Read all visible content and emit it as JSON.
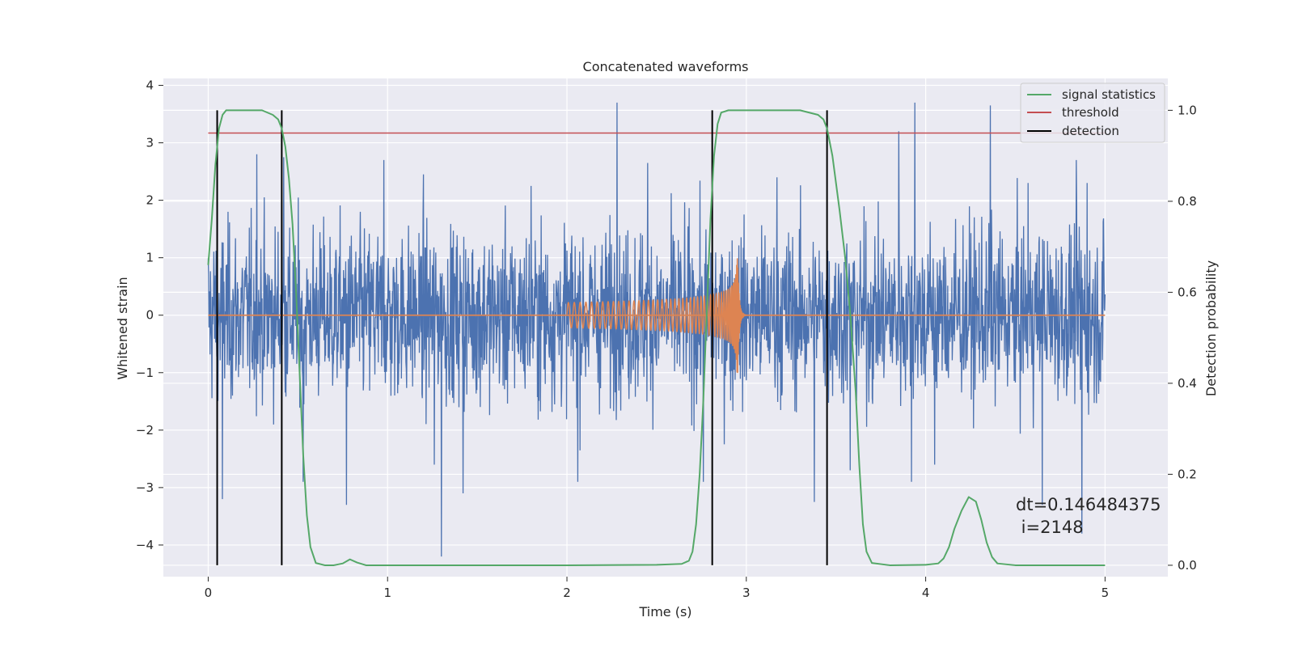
{
  "chart_data": {
    "type": "line",
    "title": "Concatenated waveforms",
    "xlabel": "Time (s)",
    "ylabel": "Whitened strain",
    "y2label": "Detection probability",
    "xlim": [
      -0.25,
      5.35
    ],
    "ylim": [
      -4.55,
      4.12
    ],
    "y2lim": [
      -0.025,
      1.07
    ],
    "xticks": [
      0,
      1,
      2,
      3,
      4,
      5
    ],
    "yticks": [
      -4,
      -3,
      -2,
      -1,
      0,
      1,
      2,
      3,
      4
    ],
    "y2ticks": [
      0.0,
      0.2,
      0.4,
      0.6,
      0.8,
      1.0
    ],
    "y2ticklabels": [
      "0.0",
      "0.2",
      "0.4",
      "0.6",
      "0.8",
      "1.0"
    ],
    "ytick_labels": [
      "−4",
      "−3",
      "−2",
      "−1",
      "0",
      "1",
      "2",
      "3",
      "4"
    ],
    "grid": true,
    "legend_position": "upper right",
    "colors": {
      "background": "#EAEAF2",
      "grid": "#FFFFFF",
      "strain": "#4C72B0",
      "template": "#DD8452",
      "signal_statistics": "#55A868",
      "threshold": "#C44E52",
      "detection": "#000000"
    },
    "series": [
      {
        "name": "strain",
        "axis": "left",
        "noise_amplitude_typical": 1.0,
        "x_range": [
          0,
          5.0
        ],
        "peaks": [
          {
            "x": 0.05,
            "y": 1.8
          },
          {
            "x": 0.08,
            "y": -3.2
          },
          {
            "x": 0.27,
            "y": 2.7
          },
          {
            "x": 0.27,
            "y": -2.7
          },
          {
            "x": 0.27,
            "y": 2.8
          },
          {
            "x": 0.42,
            "y": 2.75
          },
          {
            "x": 0.53,
            "y": -2.9
          },
          {
            "x": 0.77,
            "y": -3.3
          },
          {
            "x": 0.98,
            "y": 2.7
          },
          {
            "x": 1.2,
            "y": 2.45
          },
          {
            "x": 1.26,
            "y": -2.6
          },
          {
            "x": 1.3,
            "y": -4.2
          },
          {
            "x": 1.42,
            "y": -3.1
          },
          {
            "x": 1.8,
            "y": 2.25
          },
          {
            "x": 2.06,
            "y": -2.9
          },
          {
            "x": 2.28,
            "y": 3.7
          },
          {
            "x": 2.45,
            "y": 2.65
          },
          {
            "x": 2.76,
            "y": -2.9
          },
          {
            "x": 3.17,
            "y": 2.4
          },
          {
            "x": 3.38,
            "y": -3.25
          },
          {
            "x": 3.58,
            "y": -2.7
          },
          {
            "x": 3.85,
            "y": 3.2
          },
          {
            "x": 3.92,
            "y": -2.9
          },
          {
            "x": 3.94,
            "y": 3.7
          },
          {
            "x": 4.05,
            "y": -2.6
          },
          {
            "x": 4.36,
            "y": 3.65
          },
          {
            "x": 4.57,
            "y": 2.3
          },
          {
            "x": 4.65,
            "y": -3.3
          },
          {
            "x": 4.84,
            "y": 2.7
          },
          {
            "x": 4.87,
            "y": -3.8
          },
          {
            "x": 4.9,
            "y": 2.3
          }
        ]
      },
      {
        "name": "template",
        "axis": "left",
        "x_start": 2.0,
        "x_end": 3.0,
        "amplitude_start": 0.22,
        "amplitude_peak": 1.25,
        "peak_x": 2.95
      },
      {
        "name": "signal statistics",
        "axis": "right",
        "x": [
          0.0,
          0.02,
          0.04,
          0.06,
          0.08,
          0.1,
          0.12,
          0.15,
          0.2,
          0.3,
          0.36,
          0.39,
          0.41,
          0.43,
          0.45,
          0.47,
          0.49,
          0.51,
          0.53,
          0.55,
          0.57,
          0.6,
          0.65,
          0.7,
          0.75,
          0.79,
          0.83,
          0.88,
          1.0,
          1.5,
          2.0,
          2.5,
          2.64,
          2.68,
          2.7,
          2.72,
          2.74,
          2.76,
          2.78,
          2.8,
          2.82,
          2.84,
          2.86,
          2.9,
          3.0,
          3.3,
          3.4,
          3.43,
          3.45,
          3.48,
          3.5,
          3.52,
          3.55,
          3.58,
          3.61,
          3.63,
          3.65,
          3.67,
          3.7,
          3.8,
          4.0,
          4.07,
          4.1,
          4.13,
          4.16,
          4.2,
          4.24,
          4.28,
          4.31,
          4.34,
          4.37,
          4.4,
          4.5,
          4.8,
          5.0
        ],
        "values": [
          0.66,
          0.76,
          0.88,
          0.96,
          0.99,
          1.0,
          1.0,
          1.0,
          1.0,
          1.0,
          0.99,
          0.98,
          0.96,
          0.92,
          0.85,
          0.75,
          0.6,
          0.42,
          0.24,
          0.11,
          0.04,
          0.005,
          0.0,
          0.0,
          0.004,
          0.013,
          0.006,
          0.0,
          0.0,
          0.0,
          0.0,
          0.001,
          0.003,
          0.01,
          0.03,
          0.09,
          0.2,
          0.36,
          0.56,
          0.76,
          0.9,
          0.97,
          0.995,
          1.0,
          1.0,
          1.0,
          0.99,
          0.98,
          0.96,
          0.9,
          0.84,
          0.78,
          0.68,
          0.55,
          0.38,
          0.22,
          0.09,
          0.03,
          0.005,
          0.0,
          0.001,
          0.004,
          0.015,
          0.04,
          0.08,
          0.12,
          0.15,
          0.14,
          0.1,
          0.05,
          0.018,
          0.004,
          0.0,
          0.0,
          0.0
        ]
      },
      {
        "name": "threshold",
        "axis": "right",
        "x": [
          0,
          5.0
        ],
        "values": [
          0.95,
          0.95
        ]
      },
      {
        "name": "detection",
        "axis": "right",
        "x": [
          0.05,
          0.41,
          2.81,
          3.45
        ],
        "y_range": [
          0.0,
          1.0
        ]
      }
    ],
    "legend": [
      "signal statistics",
      "threshold",
      "detection"
    ],
    "annotation": {
      "line1": "dt=0.146484375",
      "line2": " i=2148"
    }
  }
}
